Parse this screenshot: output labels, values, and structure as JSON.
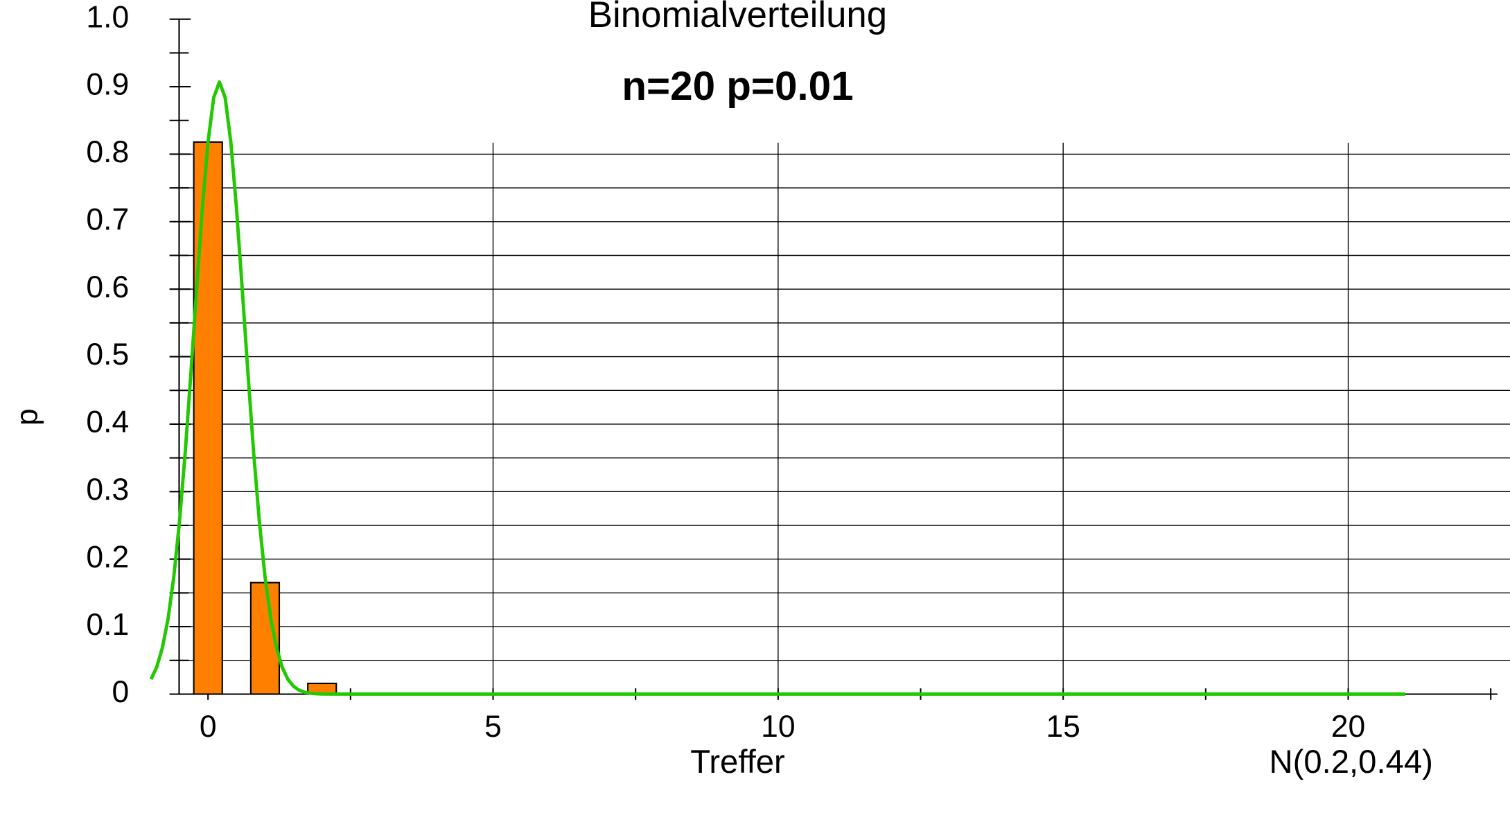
{
  "chart_data": {
    "type": "bar",
    "title": "Binomialverteilung",
    "subtitle": "n=20 p=0.01",
    "xlabel": "Treffer",
    "ylabel": "p",
    "x": [
      0,
      1,
      2,
      3,
      4,
      5,
      6,
      7,
      8,
      9,
      10,
      11,
      12,
      13,
      14,
      15,
      16,
      17,
      18,
      19,
      20
    ],
    "values": [
      0.8179,
      0.1652,
      0.0159,
      0.001,
      0,
      0,
      0,
      0,
      0,
      0,
      0,
      0,
      0,
      0,
      0,
      0,
      0,
      0,
      0,
      0,
      0
    ],
    "color": "#ff8000",
    "xlim": [
      -0.507,
      22.838
    ],
    "ylim": [
      0,
      1
    ],
    "xticks": [
      0,
      5,
      10,
      15,
      20
    ],
    "xminor_ticks": [
      2.5,
      7.5,
      12.5,
      17.5,
      22.5
    ],
    "yticks": [
      0,
      0.1,
      0.2,
      0.3,
      0.4,
      0.5,
      0.6,
      0.7,
      0.8,
      0.9,
      {
        "value": 1,
        "label": "1.0"
      }
    ],
    "yminor_ticks": [
      0.05,
      0.15,
      0.25,
      0.35,
      0.45,
      0.55,
      0.65,
      0.75,
      0.85,
      0.95
    ],
    "ygrid": [
      0.05,
      0.1,
      0.15,
      0.2,
      0.25,
      0.3,
      0.35,
      0.4,
      0.45,
      0.5,
      0.55,
      0.6,
      0.65,
      0.7,
      0.75,
      0.8
    ],
    "xgrid": [
      5,
      10,
      15,
      20
    ],
    "curve": {
      "type": "line",
      "name": "N(0.2,0.44)",
      "color": "#22c800",
      "x": [
        -1,
        -0.9,
        -0.8,
        -0.7,
        -0.6,
        -0.5,
        -0.4,
        -0.3,
        -0.2,
        -0.1,
        0,
        0.1,
        0.2,
        0.3,
        0.4,
        0.5,
        0.6,
        0.7,
        0.8,
        0.9,
        1,
        1.1,
        1.2,
        1.3,
        1.4,
        1.5,
        1.6,
        1.7,
        1.8,
        1.9,
        2,
        2.5,
        5,
        10,
        15,
        20,
        21
      ],
      "values": [
        0.022,
        0.04,
        0.069,
        0.112,
        0.174,
        0.256,
        0.358,
        0.476,
        0.6,
        0.719,
        0.818,
        0.884,
        0.907,
        0.884,
        0.818,
        0.719,
        0.6,
        0.476,
        0.358,
        0.256,
        0.174,
        0.112,
        0.069,
        0.04,
        0.022,
        0.0115,
        0.0058,
        0.0027,
        0.0012,
        0.0005,
        0.0002,
        0,
        0,
        0,
        0,
        0,
        0
      ]
    }
  }
}
